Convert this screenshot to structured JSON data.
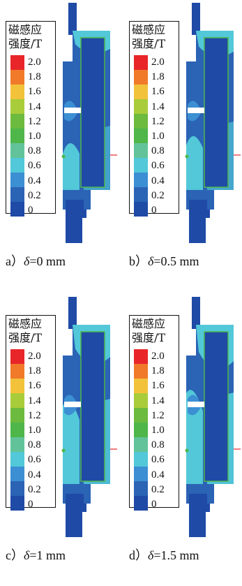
{
  "legend": {
    "title": "磁感应\n强度/T",
    "ticks": [
      "2.0",
      "1.8",
      "1.6",
      "1.4",
      "1.2",
      "1.0",
      "0.8",
      "0.6",
      "0.4",
      "0.2",
      "0"
    ],
    "colors": [
      "#e8262a",
      "#f07a2a",
      "#f2c23a",
      "#a9cc3a",
      "#6cba3e",
      "#4fb64a",
      "#62c39a",
      "#52c8d8",
      "#3c8fd2",
      "#2b63b5",
      "#1f4aa6"
    ]
  },
  "panels": [
    {
      "label": "a）",
      "symbol": "δ",
      "value": "=0 mm"
    },
    {
      "label": "b）",
      "symbol": "δ",
      "value": "=0.5 mm"
    },
    {
      "label": "c）",
      "symbol": "δ",
      "value": "=1 mm"
    },
    {
      "label": "d）",
      "symbol": "δ",
      "value": "=1.5 mm"
    }
  ],
  "colors": {
    "dark_blue": "#1f4aa6",
    "mid_blue": "#2b63b5",
    "light_blue": "#3c8fd2",
    "cyan": "#52c8d8",
    "teal": "#62c39a",
    "green": "#4fb64a",
    "marker_red": "#e8262a"
  }
}
